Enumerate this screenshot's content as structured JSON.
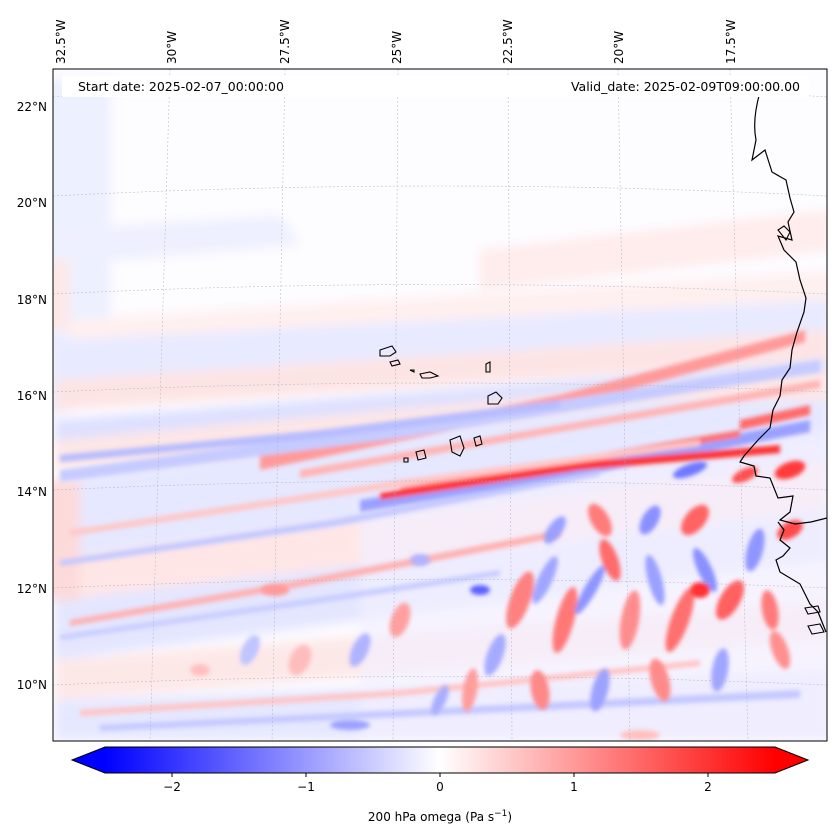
{
  "map": {
    "start_date_label": "Start date: 2025-02-07_00:00:00",
    "valid_date_label": "Valid_date: 2025-02-09T09:00:00.00",
    "lon_labels": [
      "32.5°W",
      "30°W",
      "27.5°W",
      "25°W",
      "22.5°W",
      "20°W",
      "17.5°W"
    ],
    "lat_labels": [
      "22°N",
      "20°N",
      "18°N",
      "16°N",
      "14°N",
      "12°N",
      "10°N"
    ],
    "field": "200 hPa omega",
    "colors": {
      "negative": "#0000ff",
      "neutral": "#ffffff",
      "positive": "#ff0000",
      "coastline": "#000000"
    }
  },
  "colorbar": {
    "label_text": "200 hPa omega (Pa s",
    "label_sup": "−1",
    "label_close": ")",
    "tick_labels": [
      "−2",
      "−1",
      "0",
      "1",
      "2"
    ],
    "ticks": [
      -2,
      -1,
      0,
      1,
      2
    ],
    "range": [
      -2.5,
      2.5
    ]
  }
}
